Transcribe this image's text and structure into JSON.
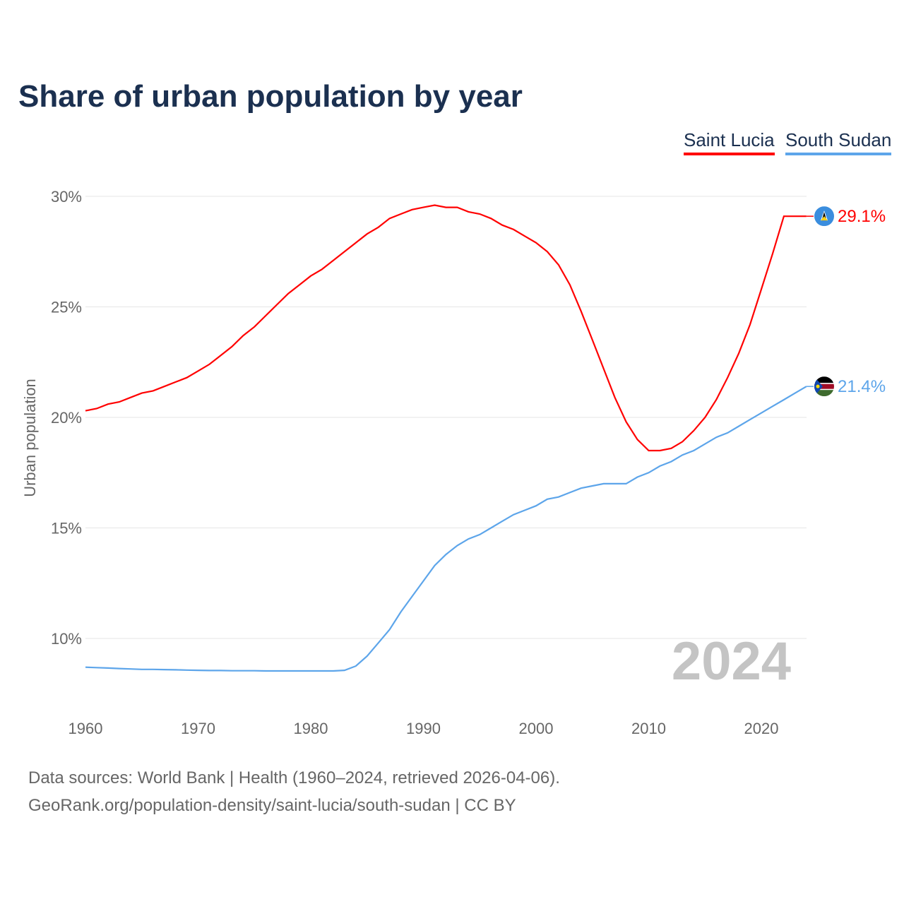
{
  "chart_data": {
    "type": "line",
    "title": "Share of urban population by year",
    "ylabel": "Urban population",
    "xlabel": "",
    "xlim": [
      1960,
      2024
    ],
    "ylim": [
      7,
      31
    ],
    "x_ticks": [
      1960,
      1970,
      1980,
      1990,
      2000,
      2010,
      2020
    ],
    "x_tick_labels": [
      "1960",
      "1970",
      "1980",
      "1990",
      "2000",
      "2010",
      "2020"
    ],
    "y_ticks": [
      10,
      15,
      20,
      25,
      30
    ],
    "y_tick_labels": [
      "10%",
      "15%",
      "20%",
      "25%",
      "30%"
    ],
    "grid": true,
    "legend_position": "top-right",
    "watermark_year": "2024",
    "x": [
      1960,
      1961,
      1962,
      1963,
      1964,
      1965,
      1966,
      1967,
      1968,
      1969,
      1970,
      1971,
      1972,
      1973,
      1974,
      1975,
      1976,
      1977,
      1978,
      1979,
      1980,
      1981,
      1982,
      1983,
      1984,
      1985,
      1986,
      1987,
      1988,
      1989,
      1990,
      1991,
      1992,
      1993,
      1994,
      1995,
      1996,
      1997,
      1998,
      1999,
      2000,
      2001,
      2002,
      2003,
      2004,
      2005,
      2006,
      2007,
      2008,
      2009,
      2010,
      2011,
      2012,
      2013,
      2014,
      2015,
      2016,
      2017,
      2018,
      2019,
      2020,
      2021,
      2022,
      2023,
      2024
    ],
    "series": [
      {
        "name": "Saint Lucia",
        "color": "#ff0000",
        "end_label": "29.1%",
        "flag": "saint-lucia-flag",
        "values": [
          20.3,
          20.4,
          20.6,
          20.7,
          20.9,
          21.1,
          21.2,
          21.4,
          21.6,
          21.8,
          22.1,
          22.4,
          22.8,
          23.2,
          23.7,
          24.1,
          24.6,
          25.1,
          25.6,
          26.0,
          26.4,
          26.7,
          27.1,
          27.5,
          27.9,
          28.3,
          28.6,
          29.0,
          29.2,
          29.4,
          29.5,
          29.6,
          29.5,
          29.5,
          29.3,
          29.2,
          29.0,
          28.7,
          28.5,
          28.2,
          27.9,
          27.5,
          26.9,
          26.0,
          24.8,
          23.5,
          22.2,
          20.9,
          19.8,
          19.0,
          18.5,
          18.5,
          18.6,
          18.9,
          19.4,
          20.0,
          20.8,
          21.8,
          22.9,
          24.2,
          25.8,
          27.4,
          29.1,
          29.1,
          29.1
        ]
      },
      {
        "name": "South Sudan",
        "color": "#5da5ea",
        "end_label": "21.4%",
        "flag": "south-sudan-flag",
        "values": [
          8.7,
          8.68,
          8.66,
          8.64,
          8.62,
          8.6,
          8.6,
          8.59,
          8.58,
          8.57,
          8.56,
          8.55,
          8.55,
          8.54,
          8.54,
          8.54,
          8.53,
          8.53,
          8.53,
          8.53,
          8.53,
          8.53,
          8.53,
          8.56,
          8.75,
          9.2,
          9.8,
          10.4,
          11.2,
          11.9,
          12.6,
          13.3,
          13.8,
          14.2,
          14.5,
          14.7,
          15.0,
          15.3,
          15.6,
          15.8,
          16.0,
          16.3,
          16.4,
          16.6,
          16.8,
          16.9,
          17.0,
          17.0,
          17.0,
          17.3,
          17.5,
          17.8,
          18.0,
          18.3,
          18.5,
          18.8,
          19.1,
          19.3,
          19.6,
          19.9,
          20.2,
          20.5,
          20.8,
          21.1,
          21.4
        ]
      }
    ]
  },
  "footer": {
    "line1": "Data sources: World Bank | Health (1960–2024, retrieved 2026-04-06).",
    "line2": "GeoRank.org/population-density/saint-lucia/south-sudan | CC BY"
  }
}
